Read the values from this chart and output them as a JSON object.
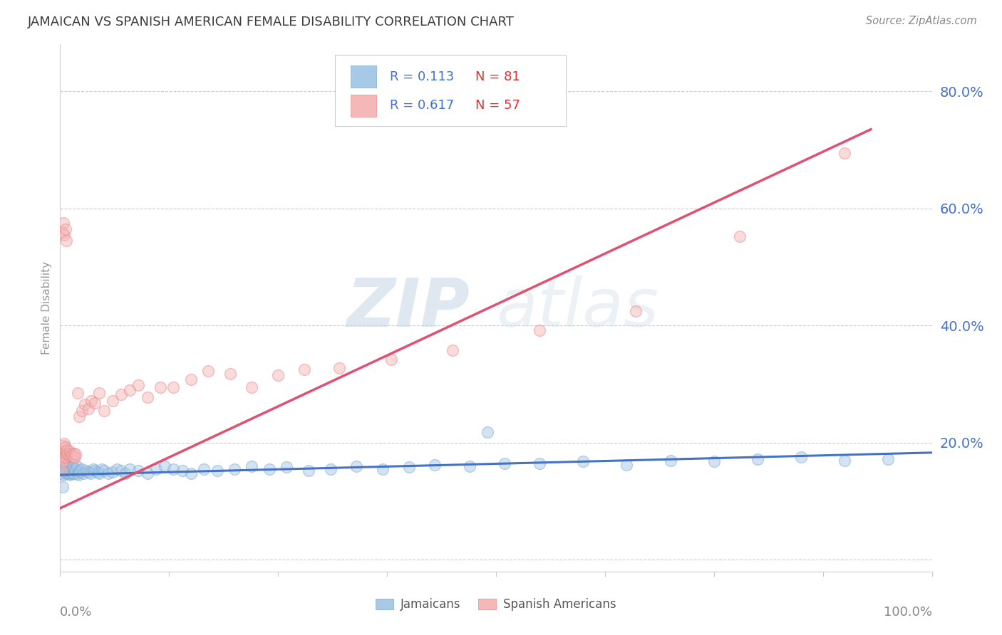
{
  "title": "JAMAICAN VS SPANISH AMERICAN FEMALE DISABILITY CORRELATION CHART",
  "source": "Source: ZipAtlas.com",
  "ylabel": "Female Disability",
  "xlim": [
    0,
    1
  ],
  "ylim": [
    -0.02,
    0.88
  ],
  "yticks": [
    0.0,
    0.2,
    0.4,
    0.6,
    0.8
  ],
  "ytick_labels": [
    "",
    "20.0%",
    "40.0%",
    "60.0%",
    "80.0%"
  ],
  "watermark_zip": "ZIP",
  "watermark_atlas": "atlas",
  "legend_r1": "R = 0.113",
  "legend_n1": "N = 81",
  "legend_r2": "R = 0.617",
  "legend_n2": "N = 57",
  "legend_label1": "Jamaicans",
  "legend_label2": "Spanish Americans",
  "color_blue_fill": "#a8c8e8",
  "color_blue_edge": "#7aabcf",
  "color_pink_fill": "#f5b8b8",
  "color_pink_edge": "#e88888",
  "color_blue_line": "#4472c4",
  "color_pink_line": "#e05070",
  "color_title": "#3c3c3c",
  "color_ytick": "#4472c4",
  "color_source": "#888888",
  "background_color": "#ffffff",
  "jamaican_x": [
    0.002,
    0.003,
    0.004,
    0.005,
    0.005,
    0.006,
    0.006,
    0.007,
    0.007,
    0.008,
    0.008,
    0.009,
    0.009,
    0.01,
    0.01,
    0.011,
    0.011,
    0.012,
    0.012,
    0.013,
    0.013,
    0.014,
    0.015,
    0.015,
    0.016,
    0.017,
    0.018,
    0.019,
    0.02,
    0.021,
    0.022,
    0.023,
    0.025,
    0.027,
    0.03,
    0.032,
    0.035,
    0.038,
    0.04,
    0.043,
    0.045,
    0.048,
    0.05,
    0.055,
    0.06,
    0.065,
    0.07,
    0.075,
    0.08,
    0.09,
    0.1,
    0.11,
    0.12,
    0.13,
    0.14,
    0.15,
    0.165,
    0.18,
    0.2,
    0.22,
    0.24,
    0.26,
    0.285,
    0.31,
    0.34,
    0.37,
    0.4,
    0.43,
    0.47,
    0.51,
    0.55,
    0.6,
    0.65,
    0.7,
    0.75,
    0.8,
    0.85,
    0.9,
    0.95,
    0.49,
    0.003
  ],
  "jamaican_y": [
    0.148,
    0.155,
    0.145,
    0.158,
    0.152,
    0.16,
    0.15,
    0.148,
    0.155,
    0.152,
    0.16,
    0.148,
    0.155,
    0.152,
    0.158,
    0.145,
    0.152,
    0.148,
    0.155,
    0.15,
    0.152,
    0.148,
    0.155,
    0.16,
    0.148,
    0.152,
    0.155,
    0.16,
    0.148,
    0.145,
    0.15,
    0.152,
    0.155,
    0.148,
    0.152,
    0.15,
    0.148,
    0.155,
    0.152,
    0.15,
    0.148,
    0.155,
    0.152,
    0.148,
    0.15,
    0.155,
    0.152,
    0.148,
    0.155,
    0.152,
    0.148,
    0.155,
    0.16,
    0.155,
    0.152,
    0.148,
    0.155,
    0.152,
    0.155,
    0.16,
    0.155,
    0.158,
    0.152,
    0.155,
    0.16,
    0.155,
    0.158,
    0.162,
    0.16,
    0.165,
    0.165,
    0.168,
    0.162,
    0.17,
    0.168,
    0.172,
    0.175,
    0.17,
    0.172,
    0.218,
    0.125
  ],
  "spanish_x": [
    0.002,
    0.003,
    0.003,
    0.004,
    0.004,
    0.005,
    0.005,
    0.006,
    0.006,
    0.007,
    0.007,
    0.008,
    0.008,
    0.009,
    0.01,
    0.011,
    0.012,
    0.013,
    0.014,
    0.015,
    0.016,
    0.017,
    0.018,
    0.02,
    0.022,
    0.025,
    0.028,
    0.032,
    0.036,
    0.04,
    0.045,
    0.05,
    0.06,
    0.07,
    0.08,
    0.09,
    0.1,
    0.115,
    0.13,
    0.15,
    0.17,
    0.195,
    0.22,
    0.25,
    0.28,
    0.32,
    0.38,
    0.45,
    0.55,
    0.66,
    0.78,
    0.9,
    0.003,
    0.004,
    0.005,
    0.006,
    0.007
  ],
  "spanish_y": [
    0.152,
    0.178,
    0.195,
    0.168,
    0.185,
    0.175,
    0.198,
    0.192,
    0.18,
    0.185,
    0.175,
    0.18,
    0.188,
    0.182,
    0.178,
    0.185,
    0.178,
    0.182,
    0.178,
    0.175,
    0.182,
    0.175,
    0.18,
    0.285,
    0.245,
    0.255,
    0.265,
    0.258,
    0.272,
    0.268,
    0.285,
    0.255,
    0.272,
    0.282,
    0.29,
    0.298,
    0.278,
    0.295,
    0.295,
    0.308,
    0.322,
    0.318,
    0.295,
    0.315,
    0.325,
    0.328,
    0.342,
    0.358,
    0.392,
    0.425,
    0.552,
    0.695,
    0.56,
    0.575,
    0.555,
    0.565,
    0.545
  ],
  "jamaican_trend_x": [
    0.0,
    1.0
  ],
  "jamaican_trend_y": [
    0.145,
    0.183
  ],
  "spanish_trend_x": [
    0.0,
    0.93
  ],
  "spanish_trend_y": [
    0.088,
    0.735
  ]
}
